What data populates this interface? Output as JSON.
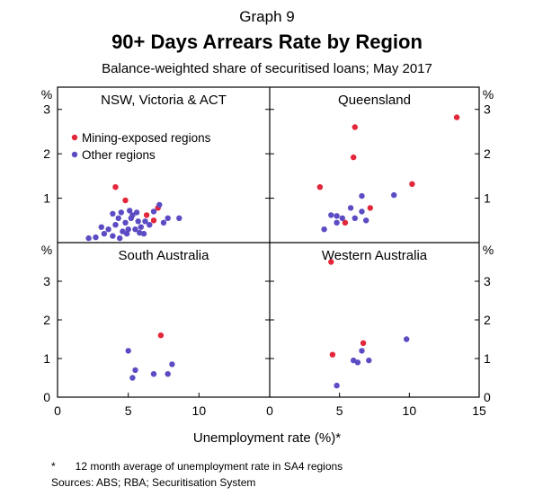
{
  "header": {
    "graph_number": "Graph 9",
    "title": "90+ Days Arrears Rate by Region",
    "subtitle": "Balance-weighted share of securitised loans; May 2017"
  },
  "footer": {
    "footnote_marker": "*",
    "footnote": "12 month average of unemployment rate in SA4 regions",
    "sources": "Sources:   ABS; RBA; Securitisation System"
  },
  "chart_data": {
    "type": "scatter",
    "title": "90+ Days Arrears Rate by Region",
    "subtitle": "Balance-weighted share of securitised loans; May 2017",
    "xlabel": "Unemployment rate (%)*",
    "ylabel": "%",
    "y_unit": "%",
    "y_ticks": [
      0,
      1,
      2,
      3
    ],
    "xlim_left": [
      0,
      15
    ],
    "xlim_right": [
      0,
      15
    ],
    "x_ticks_left": [
      0,
      5,
      10
    ],
    "x_ticks_right": [
      0,
      5,
      10,
      15
    ],
    "legend_placement": "top-left of first panel",
    "series_defs": [
      {
        "name": "Mining-exposed regions",
        "color": "#e3263a"
      },
      {
        "name": "Other regions",
        "color": "#5b4cc4"
      }
    ],
    "panels": [
      {
        "title": "NSW, Victoria & ACT",
        "ylim": [
          0,
          3.5
        ],
        "series": [
          {
            "name": "Mining-exposed regions",
            "color": "#e3263a",
            "points": [
              [
                4.1,
                1.25
              ],
              [
                4.8,
                0.95
              ],
              [
                7.1,
                0.78
              ],
              [
                6.8,
                0.5
              ],
              [
                6.3,
                0.62
              ]
            ]
          },
          {
            "name": "Other regions",
            "color": "#5b4cc4",
            "points": [
              [
                2.2,
                0.1
              ],
              [
                2.7,
                0.12
              ],
              [
                3.1,
                0.35
              ],
              [
                3.3,
                0.2
              ],
              [
                3.6,
                0.3
              ],
              [
                3.9,
                0.65
              ],
              [
                3.9,
                0.15
              ],
              [
                4.1,
                0.4
              ],
              [
                4.3,
                0.55
              ],
              [
                4.5,
                0.68
              ],
              [
                4.6,
                0.25
              ],
              [
                4.8,
                0.45
              ],
              [
                4.9,
                0.2
              ],
              [
                5.1,
                0.72
              ],
              [
                5.2,
                0.55
              ],
              [
                5.3,
                0.62
              ],
              [
                5.5,
                0.3
              ],
              [
                5.6,
                0.68
              ],
              [
                5.7,
                0.48
              ],
              [
                5.8,
                0.22
              ],
              [
                5.9,
                0.35
              ],
              [
                6.1,
                0.2
              ],
              [
                6.5,
                0.4
              ],
              [
                6.8,
                0.7
              ],
              [
                7.2,
                0.85
              ],
              [
                7.5,
                0.45
              ],
              [
                7.8,
                0.55
              ],
              [
                8.6,
                0.55
              ],
              [
                4.4,
                0.1
              ],
              [
                5.0,
                0.3
              ],
              [
                6.2,
                0.48
              ]
            ]
          }
        ]
      },
      {
        "title": "Queensland",
        "ylim": [
          0,
          3.5
        ],
        "series": [
          {
            "name": "Mining-exposed regions",
            "color": "#e3263a",
            "points": [
              [
                3.6,
                1.25
              ],
              [
                6.1,
                2.6
              ],
              [
                6.0,
                1.92
              ],
              [
                5.4,
                0.45
              ],
              [
                7.2,
                0.78
              ],
              [
                10.2,
                1.32
              ],
              [
                13.4,
                2.82
              ]
            ]
          },
          {
            "name": "Other regions",
            "color": "#5b4cc4",
            "points": [
              [
                3.9,
                0.3
              ],
              [
                4.4,
                0.62
              ],
              [
                4.8,
                0.45
              ],
              [
                4.8,
                0.6
              ],
              [
                5.2,
                0.55
              ],
              [
                5.8,
                0.78
              ],
              [
                6.1,
                0.55
              ],
              [
                6.6,
                1.05
              ],
              [
                6.6,
                0.7
              ],
              [
                6.9,
                0.5
              ],
              [
                8.9,
                1.07
              ]
            ]
          }
        ]
      },
      {
        "title": "South Australia",
        "ylim": [
          0,
          4
        ],
        "series": [
          {
            "name": "Mining-exposed regions",
            "color": "#e3263a",
            "points": [
              [
                7.3,
                1.6
              ]
            ]
          },
          {
            "name": "Other regions",
            "color": "#5b4cc4",
            "points": [
              [
                5.0,
                1.2
              ],
              [
                5.3,
                0.5
              ],
              [
                5.5,
                0.7
              ],
              [
                6.8,
                0.6
              ],
              [
                7.8,
                0.6
              ],
              [
                8.1,
                0.85
              ]
            ]
          }
        ]
      },
      {
        "title": "Western Australia",
        "ylim": [
          0,
          4
        ],
        "series": [
          {
            "name": "Mining-exposed regions",
            "color": "#e3263a",
            "points": [
              [
                4.4,
                3.5
              ],
              [
                4.5,
                1.1
              ],
              [
                6.7,
                1.4
              ]
            ]
          },
          {
            "name": "Other regions",
            "color": "#5b4cc4",
            "points": [
              [
                4.8,
                0.3
              ],
              [
                6.0,
                0.95
              ],
              [
                6.3,
                0.9
              ],
              [
                6.6,
                1.2
              ],
              [
                7.1,
                0.95
              ],
              [
                9.8,
                1.5
              ]
            ]
          }
        ]
      }
    ]
  }
}
